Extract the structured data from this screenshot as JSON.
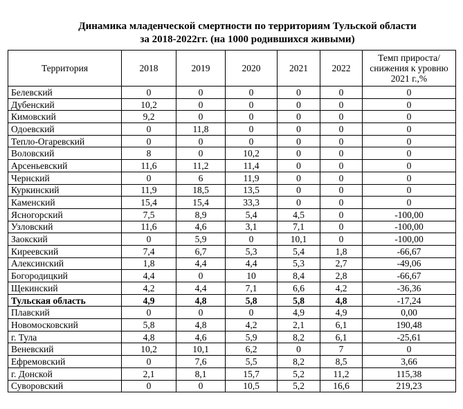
{
  "title_line1": "Динамика младенческой смертности по территориям Тульской области",
  "title_line2": "за 2018-2022гг. (на 1000 родившихся живыми)",
  "headers": [
    "Территория",
    "2018",
    "2019",
    "2020",
    "2021",
    "2022",
    "Темп прироста/ снижения к уровню 2021 г.,%"
  ],
  "rows": [
    [
      "Белевский",
      "0",
      "0",
      "0",
      "0",
      "0",
      "0"
    ],
    [
      "Дубенский",
      "10,2",
      "0",
      "0",
      "0",
      "0",
      "0"
    ],
    [
      "Кимовский",
      "9,2",
      "0",
      "0",
      "0",
      "0",
      "0"
    ],
    [
      "Одоевский",
      "0",
      "11,8",
      "0",
      "0",
      "0",
      "0"
    ],
    [
      "Тепло-Огаревский",
      "0",
      "0",
      "0",
      "0",
      "0",
      "0"
    ],
    [
      "Воловский",
      "8",
      "0",
      "10,2",
      "0",
      "0",
      "0"
    ],
    [
      "Арсеньевский",
      "11,6",
      "11,2",
      "11,4",
      "0",
      "0",
      "0"
    ],
    [
      "Чернский",
      "0",
      "6",
      "11,9",
      "0",
      "0",
      "0"
    ],
    [
      "Куркинский",
      "11,9",
      "18,5",
      "13,5",
      "0",
      "0",
      "0"
    ],
    [
      "Каменский",
      "15,4",
      "15,4",
      "33,3",
      "0",
      "0",
      "0"
    ],
    [
      "Ясногорский",
      "7,5",
      "8,9",
      "5,4",
      "4,5",
      "0",
      "-100,00"
    ],
    [
      "Узловский",
      "11,6",
      "4,6",
      "3,1",
      "7,1",
      "0",
      "-100,00"
    ],
    [
      "Заокский",
      "0",
      "5,9",
      "0",
      "10,1",
      "0",
      "-100,00"
    ],
    [
      "Киреевский",
      "7,4",
      "6,7",
      "5,3",
      "5,4",
      "1,8",
      "-66,67"
    ],
    [
      "Алексинский",
      "1,8",
      "4,4",
      "4,4",
      "5,3",
      "2,7",
      "-49,06"
    ],
    [
      "Богородицкий",
      "4,4",
      "0",
      "10",
      "8,4",
      "2,8",
      "-66,67"
    ],
    [
      "Щекинский",
      "4,2",
      "4,4",
      "7,1",
      "6,6",
      "4,2",
      "-36,36"
    ],
    [
      "Тульская область",
      "4,9",
      "4,8",
      "5,8",
      "5,8",
      "4,8",
      "-17,24"
    ],
    [
      "Плавский",
      "0",
      "0",
      "0",
      "4,9",
      "4,9",
      "0,00"
    ],
    [
      "Новомосковский",
      "5,8",
      "4,8",
      "4,2",
      "2,1",
      "6,1",
      "190,48"
    ],
    [
      "г. Тула",
      "4,8",
      "4,6",
      "5,9",
      "8,2",
      "6,1",
      "-25,61"
    ],
    [
      "Веневский",
      "10,2",
      "10,1",
      "6,2",
      "0",
      "7",
      "0"
    ],
    [
      "Ефремовский",
      "0",
      "7,6",
      "5,5",
      "8,2",
      "8,5",
      "3,66"
    ],
    [
      "г. Донской",
      "2,1",
      "8,1",
      "15,7",
      "5,2",
      "11,2",
      "115,38"
    ],
    [
      "Суворовский",
      "0",
      "0",
      "10,5",
      "5,2",
      "16,6",
      "219,23"
    ]
  ]
}
